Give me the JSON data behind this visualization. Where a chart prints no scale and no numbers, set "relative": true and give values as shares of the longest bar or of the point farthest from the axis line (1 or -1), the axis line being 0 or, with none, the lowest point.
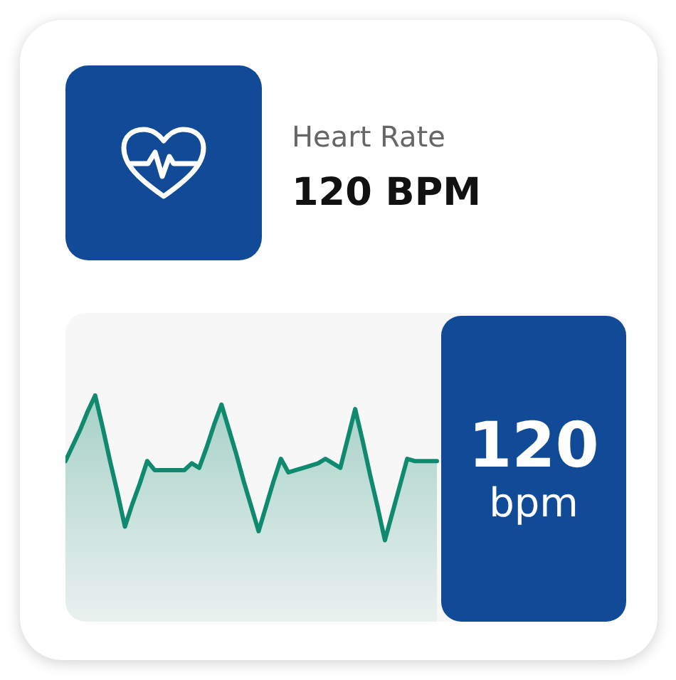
{
  "chart_data": {
    "type": "area",
    "title": "Heart Rate",
    "subtitle": "120 BPM",
    "annotations": [
      "120",
      "bpm"
    ],
    "relative": true,
    "marker": "none",
    "color": "#0f8a6f",
    "categories": [
      null,
      null,
      null,
      null,
      null,
      null,
      null,
      null,
      null,
      null,
      null,
      null,
      null,
      null,
      null,
      null,
      null,
      null,
      null,
      null,
      null,
      null,
      null,
      null,
      null,
      null,
      null,
      null,
      null,
      null,
      null,
      null,
      null,
      null,
      null,
      null,
      null,
      null,
      null,
      null,
      null,
      null,
      null,
      null,
      null,
      null,
      null,
      null,
      null,
      null,
      null
    ],
    "values": [
      0.71,
      0.78,
      0.85,
      0.93,
      1,
      0.86,
      0.71,
      0.57,
      0.42,
      0.52,
      0.61,
      0.71,
      0.67,
      0.67,
      0.67,
      0.67,
      0.67,
      0.7,
      0.68,
      0.77,
      0.87,
      0.96,
      0.85,
      0.74,
      0.62,
      0.51,
      0.4,
      0.51,
      0.62,
      0.72,
      0.66,
      0.67,
      0.68,
      0.69,
      0.7,
      0.72,
      0.7,
      0.68,
      0.81,
      0.94,
      0.8,
      0.65,
      0.51,
      0.36,
      0.48,
      0.6,
      0.72,
      0.71,
      0.71,
      0.71,
      0.71
    ]
  }
}
